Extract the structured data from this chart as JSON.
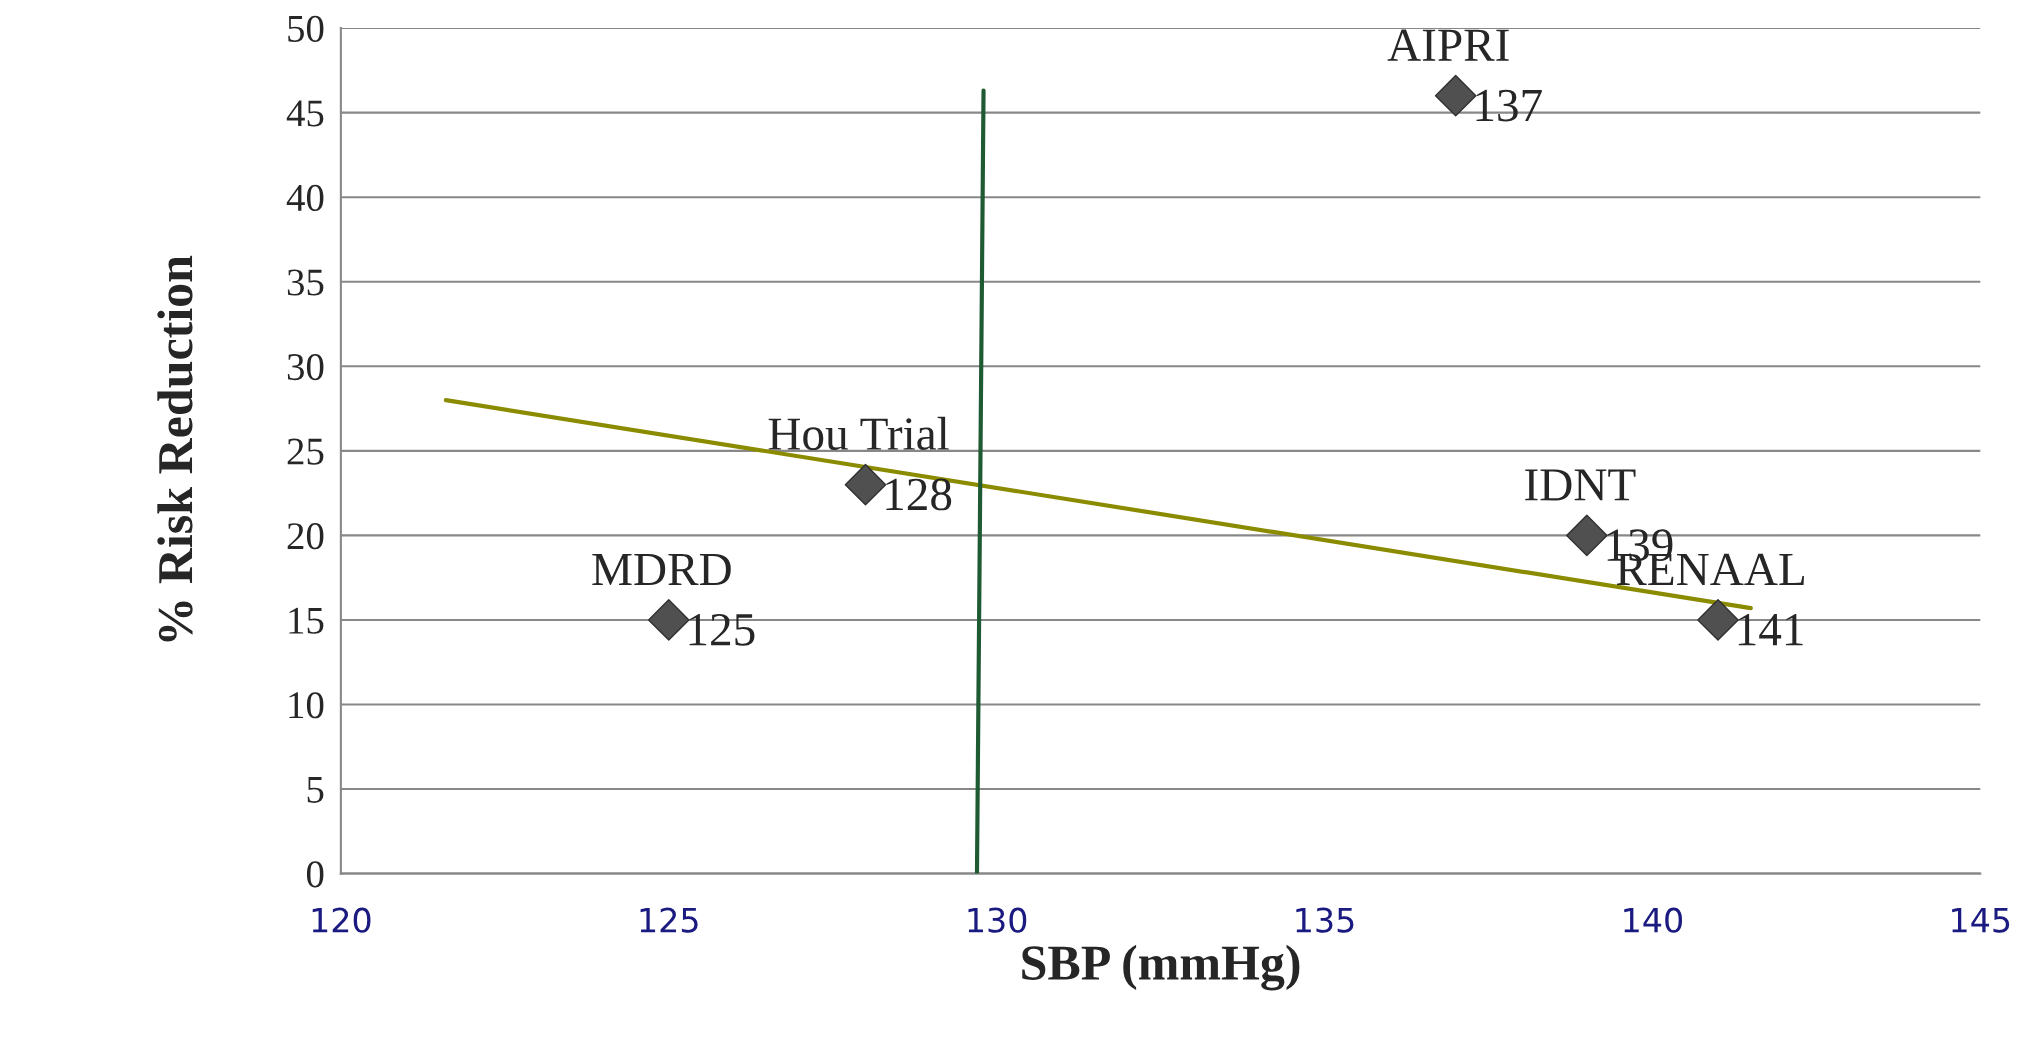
{
  "chart_data": {
    "type": "scatter",
    "xlabel": "SBP (mmHg)",
    "ylabel": "% Risk Reduction",
    "xlim": [
      120,
      145
    ],
    "xticks": [
      120,
      125,
      130,
      135,
      140,
      145
    ],
    "ylim": [
      0,
      50
    ],
    "yticks": [
      0,
      5,
      10,
      15,
      20,
      25,
      30,
      35,
      40,
      45,
      50
    ],
    "grid": "y",
    "marker": "diamond",
    "series": [
      {
        "color": "#505050",
        "x": [
          125,
          128,
          137,
          139,
          141
        ],
        "values": [
          15,
          23,
          46,
          20,
          15
        ]
      },
      {
        "type": "line",
        "color": "#8b8b00",
        "x": [
          121.6,
          141.5
        ],
        "values": [
          28,
          15.7
        ],
        "marker": "none",
        "line_style": "solid"
      },
      {
        "type": "line",
        "color": "#1e5a32",
        "x": [
          129.7,
          129.8
        ],
        "values": [
          0,
          46.3
        ],
        "marker": "none",
        "line_style": "solid"
      }
    ],
    "annotations": [
      {
        "text": "MDRD",
        "x": 125,
        "y": 15
      },
      {
        "text": "125",
        "x": 125,
        "y": 15
      },
      {
        "text": "Hou Trial",
        "x": 128,
        "y": 23
      },
      {
        "text": "128",
        "x": 128,
        "y": 23
      },
      {
        "text": "AIPRI",
        "x": 137,
        "y": 46
      },
      {
        "text": "137",
        "x": 137,
        "y": 46
      },
      {
        "text": "IDNT",
        "x": 139,
        "y": 20
      },
      {
        "text": "139",
        "x": 139,
        "y": 20
      },
      {
        "text": "RENAAL",
        "x": 141,
        "y": 15
      },
      {
        "text": "141",
        "x": 141,
        "y": 15
      }
    ]
  }
}
